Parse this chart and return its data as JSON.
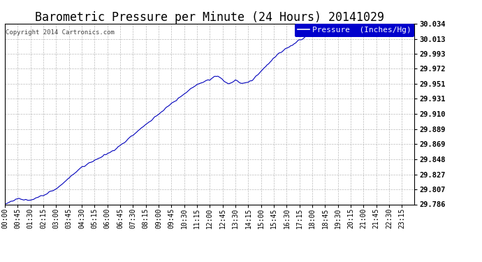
{
  "title": "Barometric Pressure per Minute (24 Hours) 20141029",
  "copyright": "Copyright 2014 Cartronics.com",
  "legend_label": "Pressure  (Inches/Hg)",
  "line_color": "#0000bb",
  "background_color": "#ffffff",
  "grid_color": "#aaaaaa",
  "ylim_min": 29.786,
  "ylim_max": 30.034,
  "yticks": [
    29.786,
    29.807,
    29.827,
    29.848,
    29.869,
    29.889,
    29.91,
    29.931,
    29.951,
    29.972,
    29.993,
    30.013,
    30.034
  ],
  "xtick_labels": [
    "00:00",
    "00:45",
    "01:30",
    "02:15",
    "03:00",
    "03:45",
    "04:30",
    "05:15",
    "06:00",
    "06:45",
    "07:30",
    "08:15",
    "09:00",
    "09:45",
    "10:30",
    "11:15",
    "12:00",
    "12:45",
    "13:30",
    "14:15",
    "15:00",
    "15:45",
    "16:30",
    "17:15",
    "18:00",
    "18:45",
    "19:30",
    "20:15",
    "21:00",
    "21:45",
    "22:30",
    "23:15"
  ],
  "title_fontsize": 12,
  "tick_fontsize": 7,
  "legend_fontsize": 8,
  "copyright_fontsize": 6.5
}
